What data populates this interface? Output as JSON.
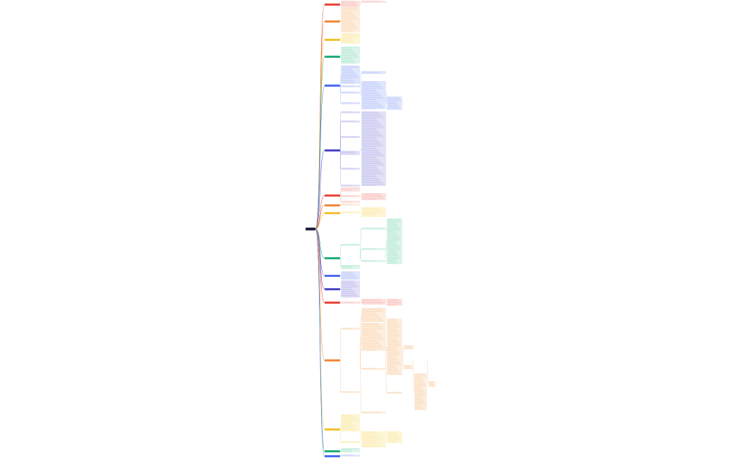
{
  "diagram": {
    "root_color": "#1f2340",
    "branches": [
      {
        "color": "#e8463a",
        "fill": "#fde3e0"
      },
      {
        "color": "#f08a3c",
        "fill": "#fdeedd"
      },
      {
        "color": "#f2c230",
        "fill": "#fdf6d6"
      },
      {
        "color": "#1fae7a",
        "fill": "#dcf5ea"
      },
      {
        "color": "#4a6cf0",
        "fill": "#e0e6fd"
      },
      {
        "color": "#4b47c4",
        "fill": "#e2e1f7"
      },
      {
        "color": "#e8463a",
        "fill": "#fde3e0"
      },
      {
        "color": "#f08a3c",
        "fill": "#fdeedd"
      },
      {
        "color": "#f2c230",
        "fill": "#fdf6d6"
      },
      {
        "color": "#1fae7a",
        "fill": "#dcf5ea"
      },
      {
        "color": "#4a6cf0",
        "fill": "#e0e6fd"
      },
      {
        "color": "#4b47c4",
        "fill": "#e2e1f7"
      },
      {
        "color": "#e8463a",
        "fill": "#fde3e0"
      },
      {
        "color": "#f08a3c",
        "fill": "#fdeedd"
      },
      {
        "color": "#f2c230",
        "fill": "#fdf6d6"
      },
      {
        "color": "#1fae7a",
        "fill": "#dcf5ea"
      },
      {
        "color": "#4a6cf0",
        "fill": "#e0e6fd"
      }
    ]
  }
}
